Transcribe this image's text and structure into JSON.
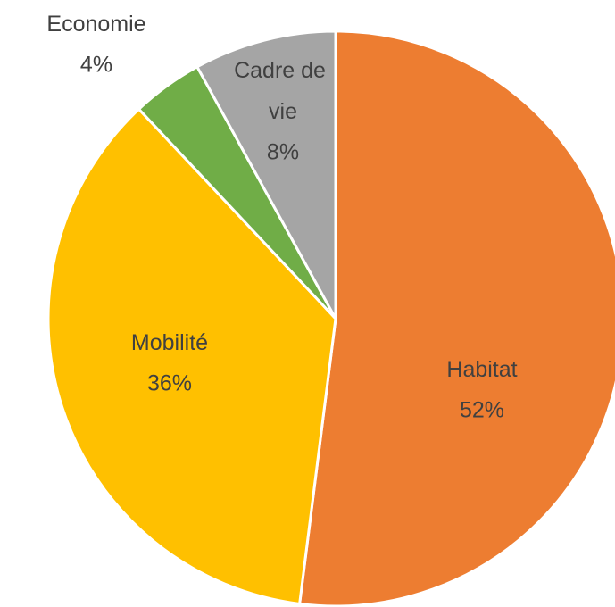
{
  "chart_data": {
    "type": "pie",
    "categories": [
      "Habitat",
      "Mobilité",
      "Economie",
      "Cadre de vie"
    ],
    "values": [
      52,
      36,
      4,
      8
    ],
    "value_labels": [
      "52%",
      "36%",
      "4%",
      "8%"
    ],
    "colors": [
      "#ED7D31",
      "#FFC000",
      "#70AD47",
      "#A5A5A5"
    ]
  }
}
